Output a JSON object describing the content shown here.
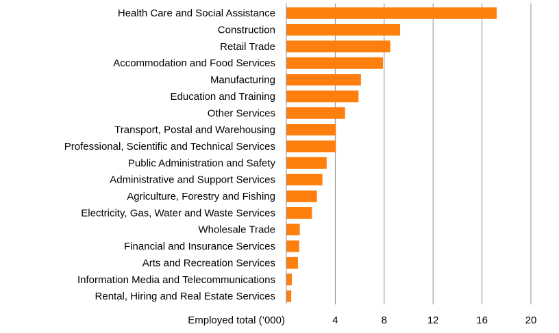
{
  "chart_data": {
    "type": "bar",
    "orientation": "horizontal",
    "xlabel": "Employed total (’000)",
    "xlim": [
      0,
      20
    ],
    "xticks": [
      4,
      8,
      12,
      16,
      20
    ],
    "grid": "vertical",
    "bar_color": "#ff7f0e",
    "categories": [
      "Health Care and Social Assistance",
      "Construction",
      "Retail Trade",
      "Accommodation and Food Services",
      "Manufacturing",
      "Education and Training",
      "Other Services",
      "Transport, Postal and Warehousing",
      "Professional, Scientific and Technical Services",
      "Public Administration and Safety",
      "Administrative and Support Services",
      "Agriculture, Forestry and Fishing",
      "Electricity, Gas, Water and Waste Services",
      "Wholesale Trade",
      "Financial and Insurance Services",
      "Arts and Recreation Services",
      "Information Media and Telecommunications",
      "Rental, Hiring and Real Estate Services"
    ],
    "values": [
      17.2,
      9.3,
      8.5,
      7.9,
      6.1,
      5.9,
      4.8,
      4.05,
      4.05,
      3.3,
      2.95,
      2.5,
      2.1,
      1.1,
      1.05,
      0.95,
      0.45,
      0.4
    ]
  }
}
